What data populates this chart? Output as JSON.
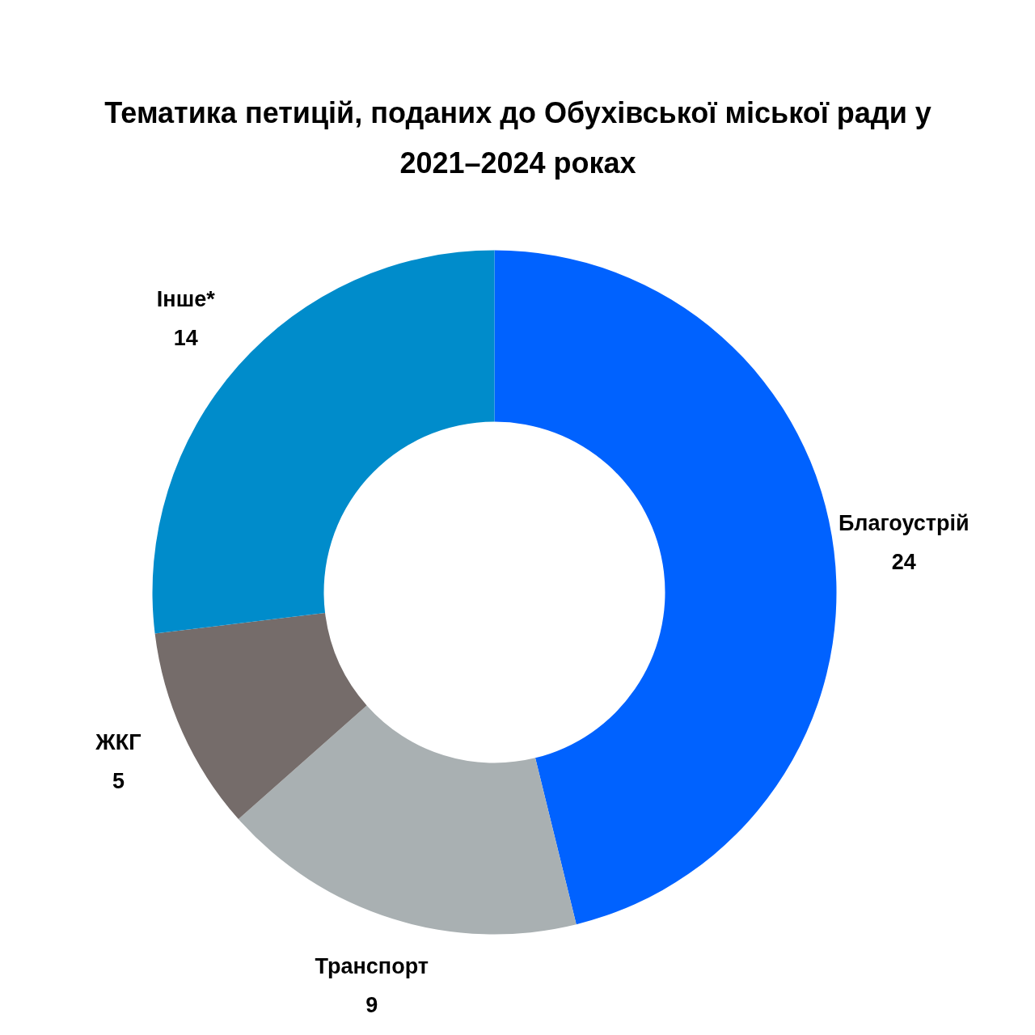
{
  "chart_data": {
    "type": "donut",
    "title": "Тематика петицій, поданих до Обухівської міської ради у 2021–2024 роках",
    "categories": [
      "Благоустрій",
      "Транспорт",
      "ЖКГ",
      "Інше*"
    ],
    "values": [
      24,
      9,
      5,
      14
    ],
    "colors": [
      "#0062ff",
      "#a9b0b2",
      "#756c6a",
      "#008ccb"
    ],
    "data_labels": true
  }
}
